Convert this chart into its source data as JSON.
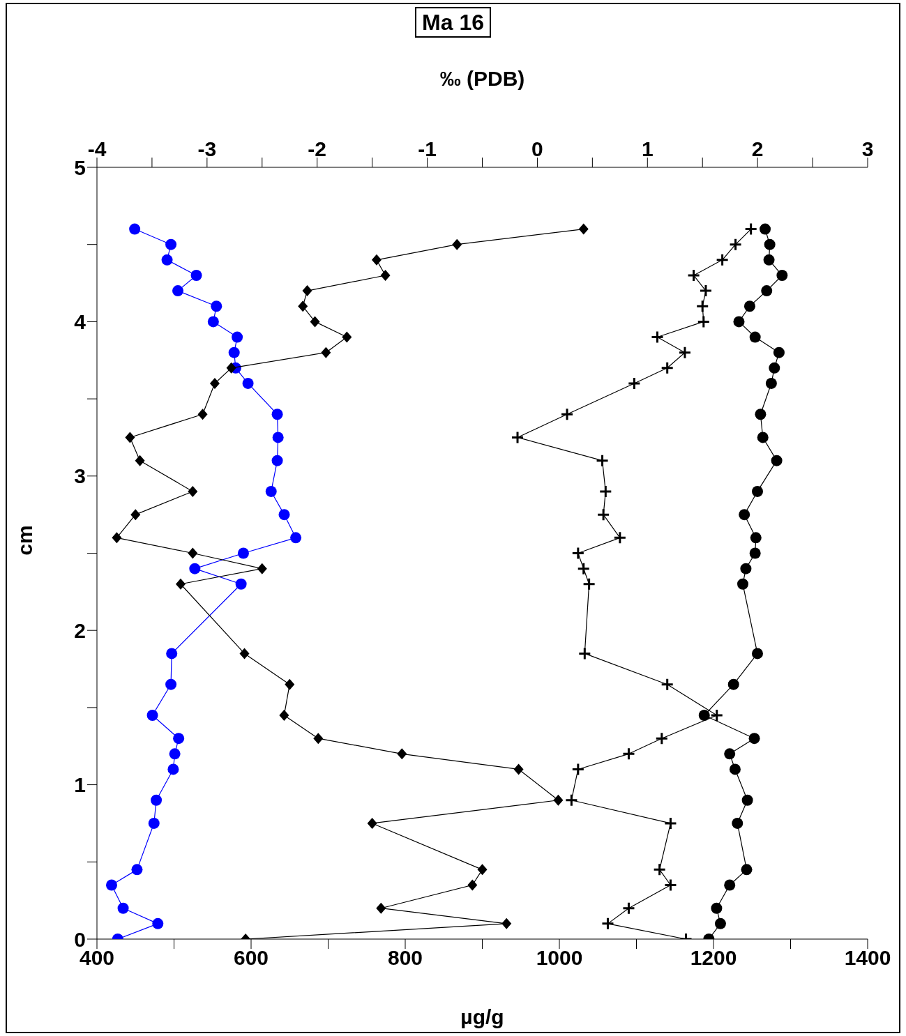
{
  "chart_data": {
    "type": "line",
    "title": "Ma 16",
    "xlabel": "µg/g",
    "x2label": "‰ (PDB)",
    "ylabel": "cm",
    "orientation": "horizontal",
    "x": [
      4.6,
      4.5,
      4.4,
      4.3,
      4.2,
      4.1,
      4.0,
      3.9,
      3.8,
      3.7,
      3.6,
      3.4,
      3.25,
      3.1,
      2.9,
      2.75,
      2.6,
      2.5,
      2.4,
      2.3,
      1.85,
      1.65,
      1.45,
      1.3,
      1.2,
      1.1,
      0.9,
      0.75,
      0.45,
      0.35,
      0.2,
      0.1,
      0
    ],
    "xlim": [
      400,
      1400
    ],
    "xticks": [
      400,
      {
        "value": 500,
        "label": null
      },
      600,
      {
        "value": 700,
        "label": null
      },
      800,
      {
        "value": 900,
        "label": null
      },
      1000,
      {
        "value": 1100,
        "label": null
      },
      1200,
      {
        "value": 1300,
        "label": null
      },
      1400
    ],
    "x2lim": [
      -4,
      3
    ],
    "x2ticks": [
      -4,
      {
        "value": -3.5,
        "label": null
      },
      -3,
      {
        "value": -2.5,
        "label": null
      },
      -2,
      {
        "value": -1.5,
        "label": null
      },
      -1,
      {
        "value": -0.5,
        "label": null
      },
      0,
      {
        "value": 0.5,
        "label": null
      },
      1,
      {
        "value": 1.5,
        "label": null
      },
      2,
      {
        "value": 2.5,
        "label": null
      },
      3
    ],
    "ylim": [
      0,
      5
    ],
    "yticks": [
      0,
      {
        "value": 0.5,
        "label": null
      },
      1,
      {
        "value": 1.5,
        "label": null
      },
      2,
      {
        "value": 2.5,
        "label": null
      },
      3,
      {
        "value": 3.5,
        "label": null
      },
      4,
      {
        "value": 4.5,
        "label": null
      },
      5
    ],
    "series": [
      {
        "color": "#0000ff",
        "marker": "circle",
        "values": [
          449,
          496,
          491,
          529,
          505,
          555,
          551,
          582,
          578,
          580,
          596,
          634,
          635,
          634,
          626,
          643,
          658,
          590,
          527,
          587,
          497,
          496,
          472,
          506,
          501,
          499,
          477,
          474,
          452,
          419,
          434,
          479,
          427
        ]
      },
      {
        "color": "#000000",
        "marker": "diamond",
        "axis": "x2",
        "values": [
          0.42,
          -0.73,
          -1.46,
          -1.38,
          -2.09,
          -2.13,
          -2.02,
          -1.73,
          -1.92,
          -2.78,
          -2.93,
          -3.04,
          -3.7,
          -3.61,
          -3.13,
          -3.65,
          -3.82,
          -3.13,
          -2.5,
          -3.24,
          -2.66,
          -2.25,
          -2.3,
          -1.99,
          -1.23,
          -0.17,
          0.19,
          -1.5,
          -0.5,
          -0.59,
          -1.42,
          -0.28,
          -2.65
        ]
      },
      {
        "color": "#000000",
        "marker": "cross",
        "axis": "x2",
        "values": [
          1.94,
          1.8,
          1.68,
          1.42,
          1.53,
          1.5,
          1.51,
          1.09,
          1.34,
          1.18,
          0.88,
          0.27,
          -0.18,
          0.59,
          0.62,
          0.6,
          0.75,
          0.37,
          0.42,
          0.47,
          0.43,
          1.18,
          1.63,
          1.13,
          0.83,
          0.37,
          0.31,
          1.21,
          1.11,
          1.21,
          0.83,
          0.64,
          1.35
        ]
      },
      {
        "color": "#000000",
        "marker": "circle",
        "values": [
          1267,
          1273,
          1272,
          1289,
          1269,
          1247,
          1233,
          1254,
          1285,
          1279,
          1275,
          1261,
          1264,
          1282,
          1257,
          1240,
          1255,
          1254,
          1242,
          1238,
          1257,
          1226,
          1188,
          1253,
          1221,
          1228,
          1244,
          1231,
          1243,
          1221,
          1204,
          1209,
          1194
        ]
      }
    ]
  }
}
